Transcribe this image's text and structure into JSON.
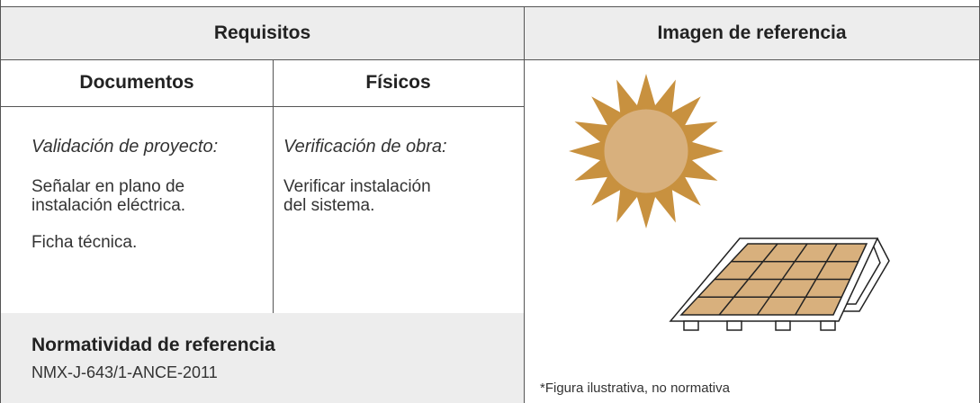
{
  "header": {
    "requisitos": "Requisitos",
    "imagen": "Imagen de referencia"
  },
  "subheader": {
    "documentos": "Documentos",
    "fisicos": "Físicos"
  },
  "documentos": {
    "title": "Validación de proyecto:",
    "items": [
      "Señalar en plano  de instalación eléctrica.",
      "Ficha técnica."
    ]
  },
  "fisicos": {
    "title": "Verificación de obra:",
    "items": [
      "Verificar instalación del sistema."
    ]
  },
  "normatividad": {
    "title": "Normatividad de referencia",
    "value": "NMX-J-643/1-ANCE-2011"
  },
  "footnote": "*Figura ilustrativa, no normativa"
}
